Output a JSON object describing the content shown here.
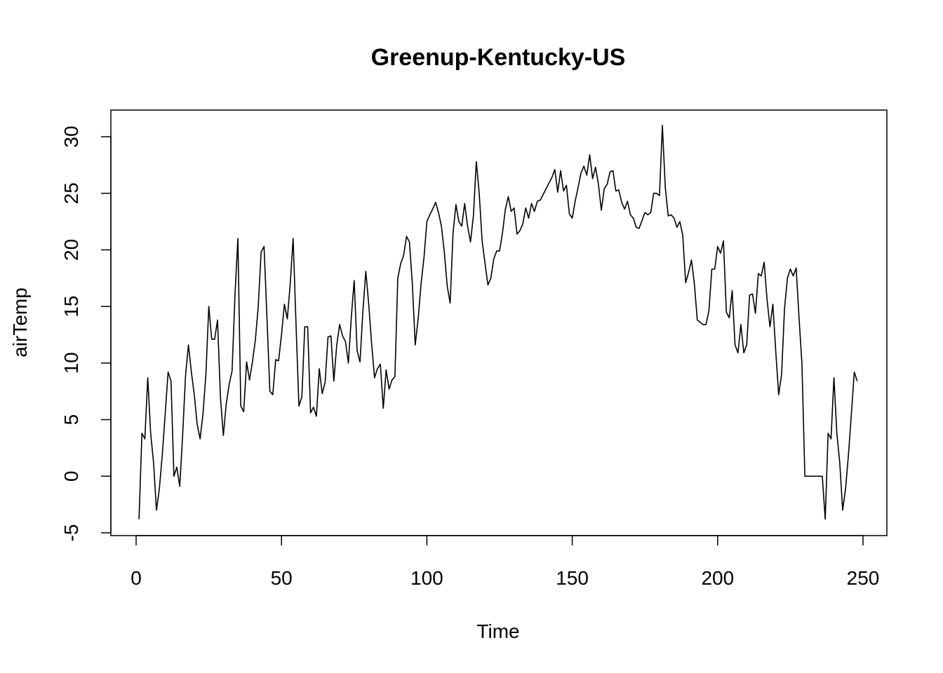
{
  "chart_data": {
    "type": "line",
    "title": "Greenup-Kentucky-US",
    "xlabel": "Time",
    "ylabel": "airTemp",
    "xlim": [
      0,
      250
    ],
    "ylim": [
      -5,
      30
    ],
    "xticks": [
      0,
      50,
      100,
      150,
      200,
      250
    ],
    "yticks": [
      -5,
      0,
      5,
      10,
      15,
      20,
      25,
      30
    ],
    "grid": false,
    "series": [
      {
        "values": [
          -3.8,
          3.8,
          3.3,
          8.7,
          3.8,
          1.2,
          -3.0,
          -1.1,
          1.9,
          5.5,
          9.2,
          8.4,
          0.0,
          0.8,
          -0.9,
          3.6,
          8.9,
          11.6,
          9.2,
          7.2,
          4.6,
          3.3,
          5.5,
          9.0,
          15.0,
          12.1,
          12.1,
          13.8,
          7.0,
          3.6,
          6.4,
          8.1,
          9.3,
          16.0,
          21.0,
          6.2,
          5.7,
          10.1,
          8.5,
          10.1,
          12.0,
          15.0,
          19.8,
          20.3,
          14.0,
          7.5,
          7.2,
          10.3,
          10.2,
          12.5,
          15.2,
          13.9,
          17.0,
          21.0,
          13.4,
          6.2,
          7.0,
          13.2,
          13.2,
          5.6,
          6.1,
          5.3,
          9.5,
          7.3,
          8.3,
          12.3,
          12.4,
          8.4,
          11.6,
          13.4,
          12.4,
          11.9,
          10.0,
          14.0,
          17.3,
          11.1,
          10.1,
          14.6,
          18.1,
          15.2,
          11.7,
          8.7,
          9.5,
          9.9,
          6.0,
          9.4,
          7.7,
          8.5,
          8.8,
          17.5,
          18.8,
          19.5,
          21.2,
          20.7,
          17.0,
          11.6,
          13.9,
          17.0,
          19.3,
          22.5,
          23.1,
          23.6,
          24.2,
          23.3,
          22.1,
          19.8,
          16.8,
          15.3,
          21.5,
          24.0,
          22.5,
          22.1,
          24.1,
          22.1,
          20.7,
          23.0,
          27.8,
          25.0,
          20.8,
          18.8,
          16.9,
          17.5,
          19.2,
          19.9,
          19.9,
          21.5,
          23.6,
          24.7,
          23.4,
          23.7,
          21.4,
          21.7,
          22.3,
          23.7,
          22.8,
          24.1,
          23.4,
          24.3,
          24.4,
          24.9,
          25.4,
          25.9,
          26.4,
          27.1,
          25.1,
          27.0,
          25.2,
          25.7,
          23.2,
          22.8,
          24.3,
          25.5,
          26.8,
          27.4,
          26.6,
          28.4,
          26.3,
          27.3,
          25.8,
          23.5,
          25.4,
          25.8,
          26.9,
          27.0,
          25.2,
          25.3,
          24.2,
          23.6,
          24.3,
          23.1,
          22.8,
          22.0,
          21.9,
          22.6,
          23.3,
          23.1,
          23.3,
          25.0,
          25.0,
          24.8,
          31.0,
          25.5,
          23.0,
          23.1,
          22.8,
          22.0,
          22.5,
          21.3,
          17.1,
          18.0,
          19.1,
          17.0,
          13.8,
          13.6,
          13.4,
          13.4,
          14.6,
          18.3,
          18.3,
          20.3,
          19.7,
          20.8,
          14.5,
          14.0,
          16.4,
          11.6,
          10.9,
          13.4,
          10.9,
          11.6,
          16.0,
          16.1,
          14.4,
          17.9,
          17.7,
          18.9,
          15.6,
          13.2,
          15.2,
          11.0,
          7.2,
          9.0,
          14.8,
          17.5,
          18.3,
          17.7,
          18.4,
          14.0,
          9.9,
          0.0,
          0.0,
          0.0,
          0.0,
          0.0,
          0.0,
          0.0,
          -3.8,
          3.8,
          3.3,
          8.7,
          3.8,
          1.2,
          -3.0,
          -1.1,
          1.9,
          5.5,
          9.2,
          8.4
        ]
      }
    ]
  }
}
